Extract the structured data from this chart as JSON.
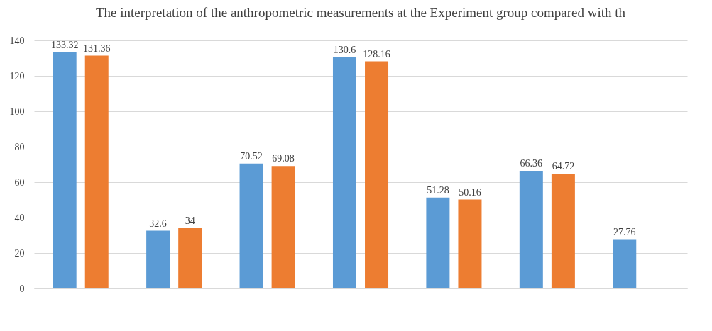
{
  "chart_data": {
    "type": "bar",
    "title": "The interpretation of the anthropometric measurements at the Experiment group compared with th",
    "categories": [
      null,
      null,
      null,
      null,
      null,
      null,
      null
    ],
    "series": [
      {
        "color": "#5b9bd5",
        "values": [
          133.32,
          32.6,
          70.52,
          130.6,
          51.28,
          66.36,
          27.76
        ]
      },
      {
        "color": "#ed7d31",
        "values": [
          131.36,
          34,
          69.08,
          128.16,
          50.16,
          64.72,
          null
        ]
      }
    ],
    "ylim": [
      0,
      140
    ],
    "yticks": [
      0,
      20,
      40,
      60,
      80,
      100,
      120,
      140
    ],
    "grid": "y",
    "data_labels": true
  }
}
